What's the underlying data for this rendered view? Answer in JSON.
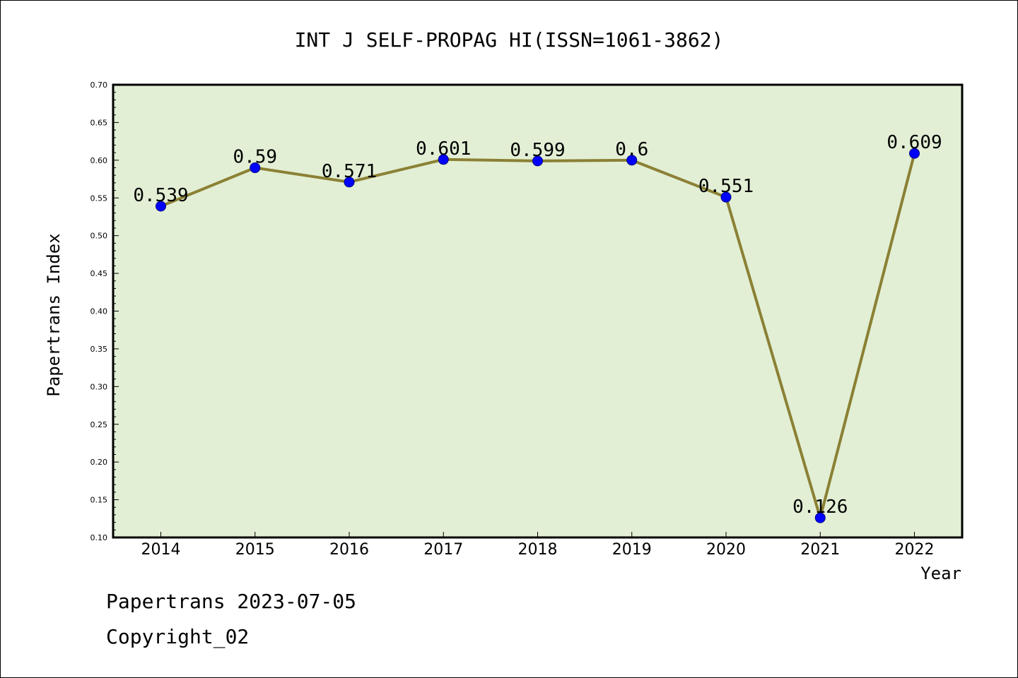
{
  "chart_data": {
    "type": "line",
    "title": "INT J SELF-PROPAG HI(ISSN=1061-3862)",
    "xlabel": "Year",
    "ylabel": "Papertrans Index",
    "categories": [
      "2014",
      "2015",
      "2016",
      "2017",
      "2018",
      "2019",
      "2020",
      "2021",
      "2022"
    ],
    "values": [
      0.539,
      0.59,
      0.571,
      0.601,
      0.599,
      0.6,
      0.551,
      0.126,
      0.609
    ],
    "data_labels": [
      "0.539",
      "0.59",
      "0.571",
      "0.601",
      "0.599",
      "0.6",
      "0.551",
      "0.126",
      "0.609"
    ],
    "ylim": [
      0.1,
      0.7
    ],
    "yticks": [
      "0.10",
      "0.15",
      "0.20",
      "0.25",
      "0.30",
      "0.35",
      "0.40",
      "0.45",
      "0.50",
      "0.55",
      "0.60",
      "0.65",
      "0.70"
    ],
    "grid": false,
    "colors": {
      "plot_background": "#e2efd5",
      "line": "#8b8034",
      "marker": "#0000ff",
      "marker_edge": "#000080"
    }
  },
  "footer": {
    "line1": "Papertrans 2023-07-05",
    "line2": "Copyright_02"
  }
}
